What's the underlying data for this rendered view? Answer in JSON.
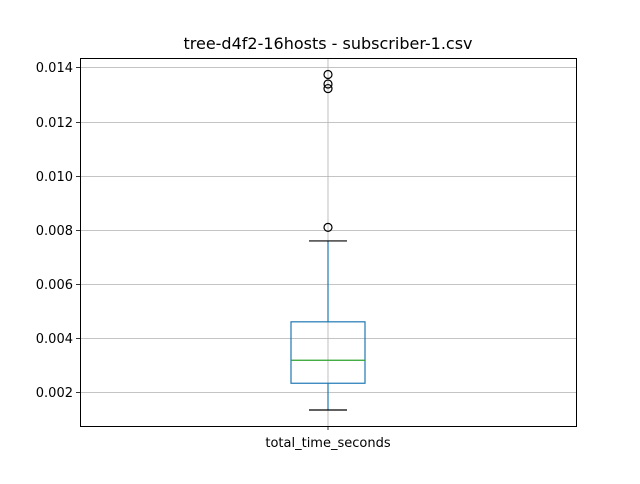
{
  "chart_data": {
    "type": "box",
    "title": "tree-d4f2-16hosts - subscriber-1.csv",
    "xlabel": "",
    "ylabel": "",
    "categories": [
      "total_time_seconds"
    ],
    "ylim": [
      0.00075,
      0.01435
    ],
    "yticks": [
      0.002,
      0.004,
      0.006,
      0.008,
      0.01,
      0.012,
      0.014
    ],
    "ytick_labels": [
      "0.002",
      "0.004",
      "0.006",
      "0.008",
      "0.010",
      "0.012",
      "0.014"
    ],
    "grid": true,
    "boxes": [
      {
        "name": "total_time_seconds",
        "whisker_low": 0.00134,
        "q1": 0.00233,
        "median": 0.00318,
        "q3": 0.0046,
        "whisker_high": 0.00759,
        "outliers": [
          0.00809,
          0.01322,
          0.01339,
          0.01374
        ]
      }
    ],
    "colors": {
      "box": "#1f77b4",
      "median": "#2ca02c",
      "whisker_cap": "#000000",
      "grid": "#b0b0b0",
      "flier": "#000000"
    }
  }
}
